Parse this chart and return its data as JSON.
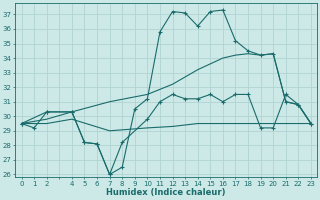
{
  "xlabel": "Humidex (Indice chaleur)",
  "bg_color": "#cce9e7",
  "grid_color": "#b0d4d2",
  "line_color": "#1a6b6b",
  "xlim": [
    -0.5,
    23.5
  ],
  "ylim": [
    25.8,
    37.8
  ],
  "yticks": [
    26,
    27,
    28,
    29,
    30,
    31,
    32,
    33,
    34,
    35,
    36,
    37
  ],
  "xticks": [
    0,
    1,
    2,
    3,
    4,
    5,
    6,
    7,
    8,
    9,
    10,
    11,
    12,
    13,
    14,
    15,
    16,
    17,
    18,
    19,
    20,
    21,
    22,
    23
  ],
  "line1_x": [
    0,
    1,
    2,
    4,
    5,
    6,
    7,
    8,
    9,
    10,
    11,
    12,
    13,
    14,
    15,
    16,
    17,
    18,
    19,
    20,
    21,
    22,
    23
  ],
  "line1_y": [
    29.5,
    29.2,
    30.3,
    30.3,
    28.2,
    28.1,
    26.0,
    26.5,
    30.5,
    31.2,
    35.8,
    37.2,
    37.1,
    36.2,
    37.2,
    37.3,
    35.2,
    34.5,
    34.2,
    34.3,
    31.0,
    30.8,
    29.5
  ],
  "line2_x": [
    0,
    2,
    4,
    5,
    6,
    7,
    8,
    10,
    11,
    12,
    13,
    14,
    15,
    16,
    17,
    18,
    19,
    20,
    21,
    22,
    23
  ],
  "line2_y": [
    29.5,
    30.3,
    30.3,
    28.2,
    28.1,
    26.0,
    28.2,
    29.8,
    31.0,
    31.5,
    31.2,
    31.2,
    31.5,
    31.0,
    31.5,
    31.5,
    29.2,
    29.2,
    31.5,
    30.8,
    29.5
  ],
  "line3_x": [
    0,
    2,
    4,
    7,
    10,
    12,
    14,
    16,
    17,
    18,
    19,
    20,
    21,
    22,
    23
  ],
  "line3_y": [
    29.5,
    29.8,
    30.3,
    31.0,
    31.5,
    32.2,
    33.2,
    34.0,
    34.2,
    34.3,
    34.2,
    34.3,
    31.0,
    30.8,
    29.5
  ],
  "line4_x": [
    0,
    2,
    4,
    7,
    10,
    12,
    14,
    16,
    17,
    19,
    20,
    22,
    23
  ],
  "line4_y": [
    29.5,
    29.5,
    29.8,
    29.0,
    29.2,
    29.3,
    29.5,
    29.5,
    29.5,
    29.5,
    29.5,
    29.5,
    29.5
  ]
}
